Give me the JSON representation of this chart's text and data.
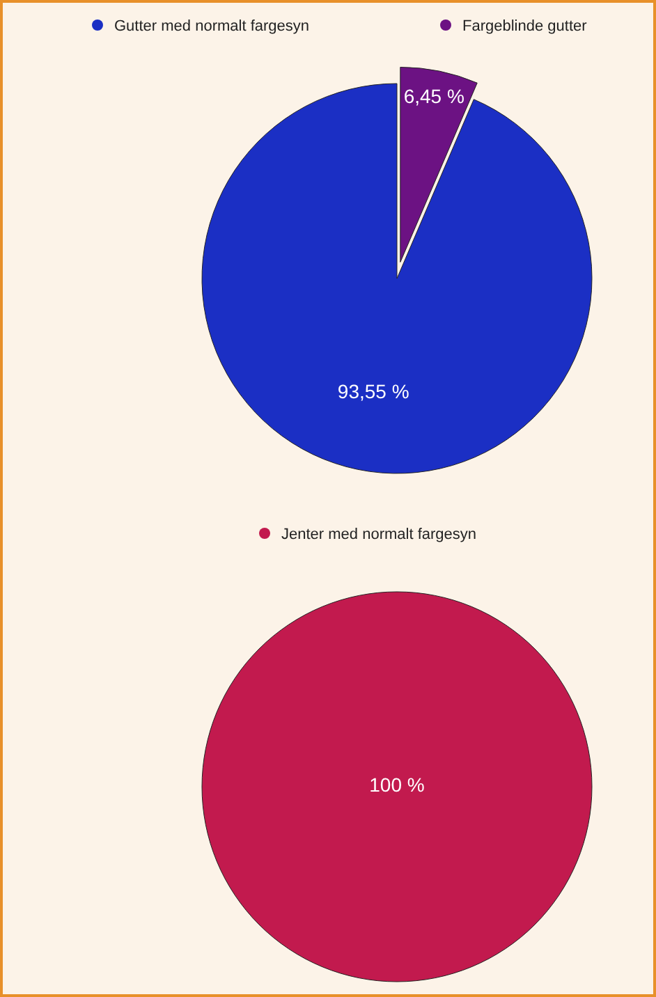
{
  "chart_data": [
    {
      "type": "pie",
      "categories": [
        "Gutter med normalt fargesyn",
        "Fargeblinde gutter"
      ],
      "values": [
        93.55,
        6.45
      ],
      "colors": [
        "#1b2fc4",
        "#6c1283"
      ],
      "value_labels": [
        "93,55 %",
        "6,45 %"
      ],
      "legend": "top"
    },
    {
      "type": "pie",
      "categories": [
        "Jenter med normalt fargesyn"
      ],
      "values": [
        100
      ],
      "colors": [
        "#c21a4e"
      ],
      "value_labels": [
        "100 %"
      ],
      "legend": "top"
    }
  ]
}
